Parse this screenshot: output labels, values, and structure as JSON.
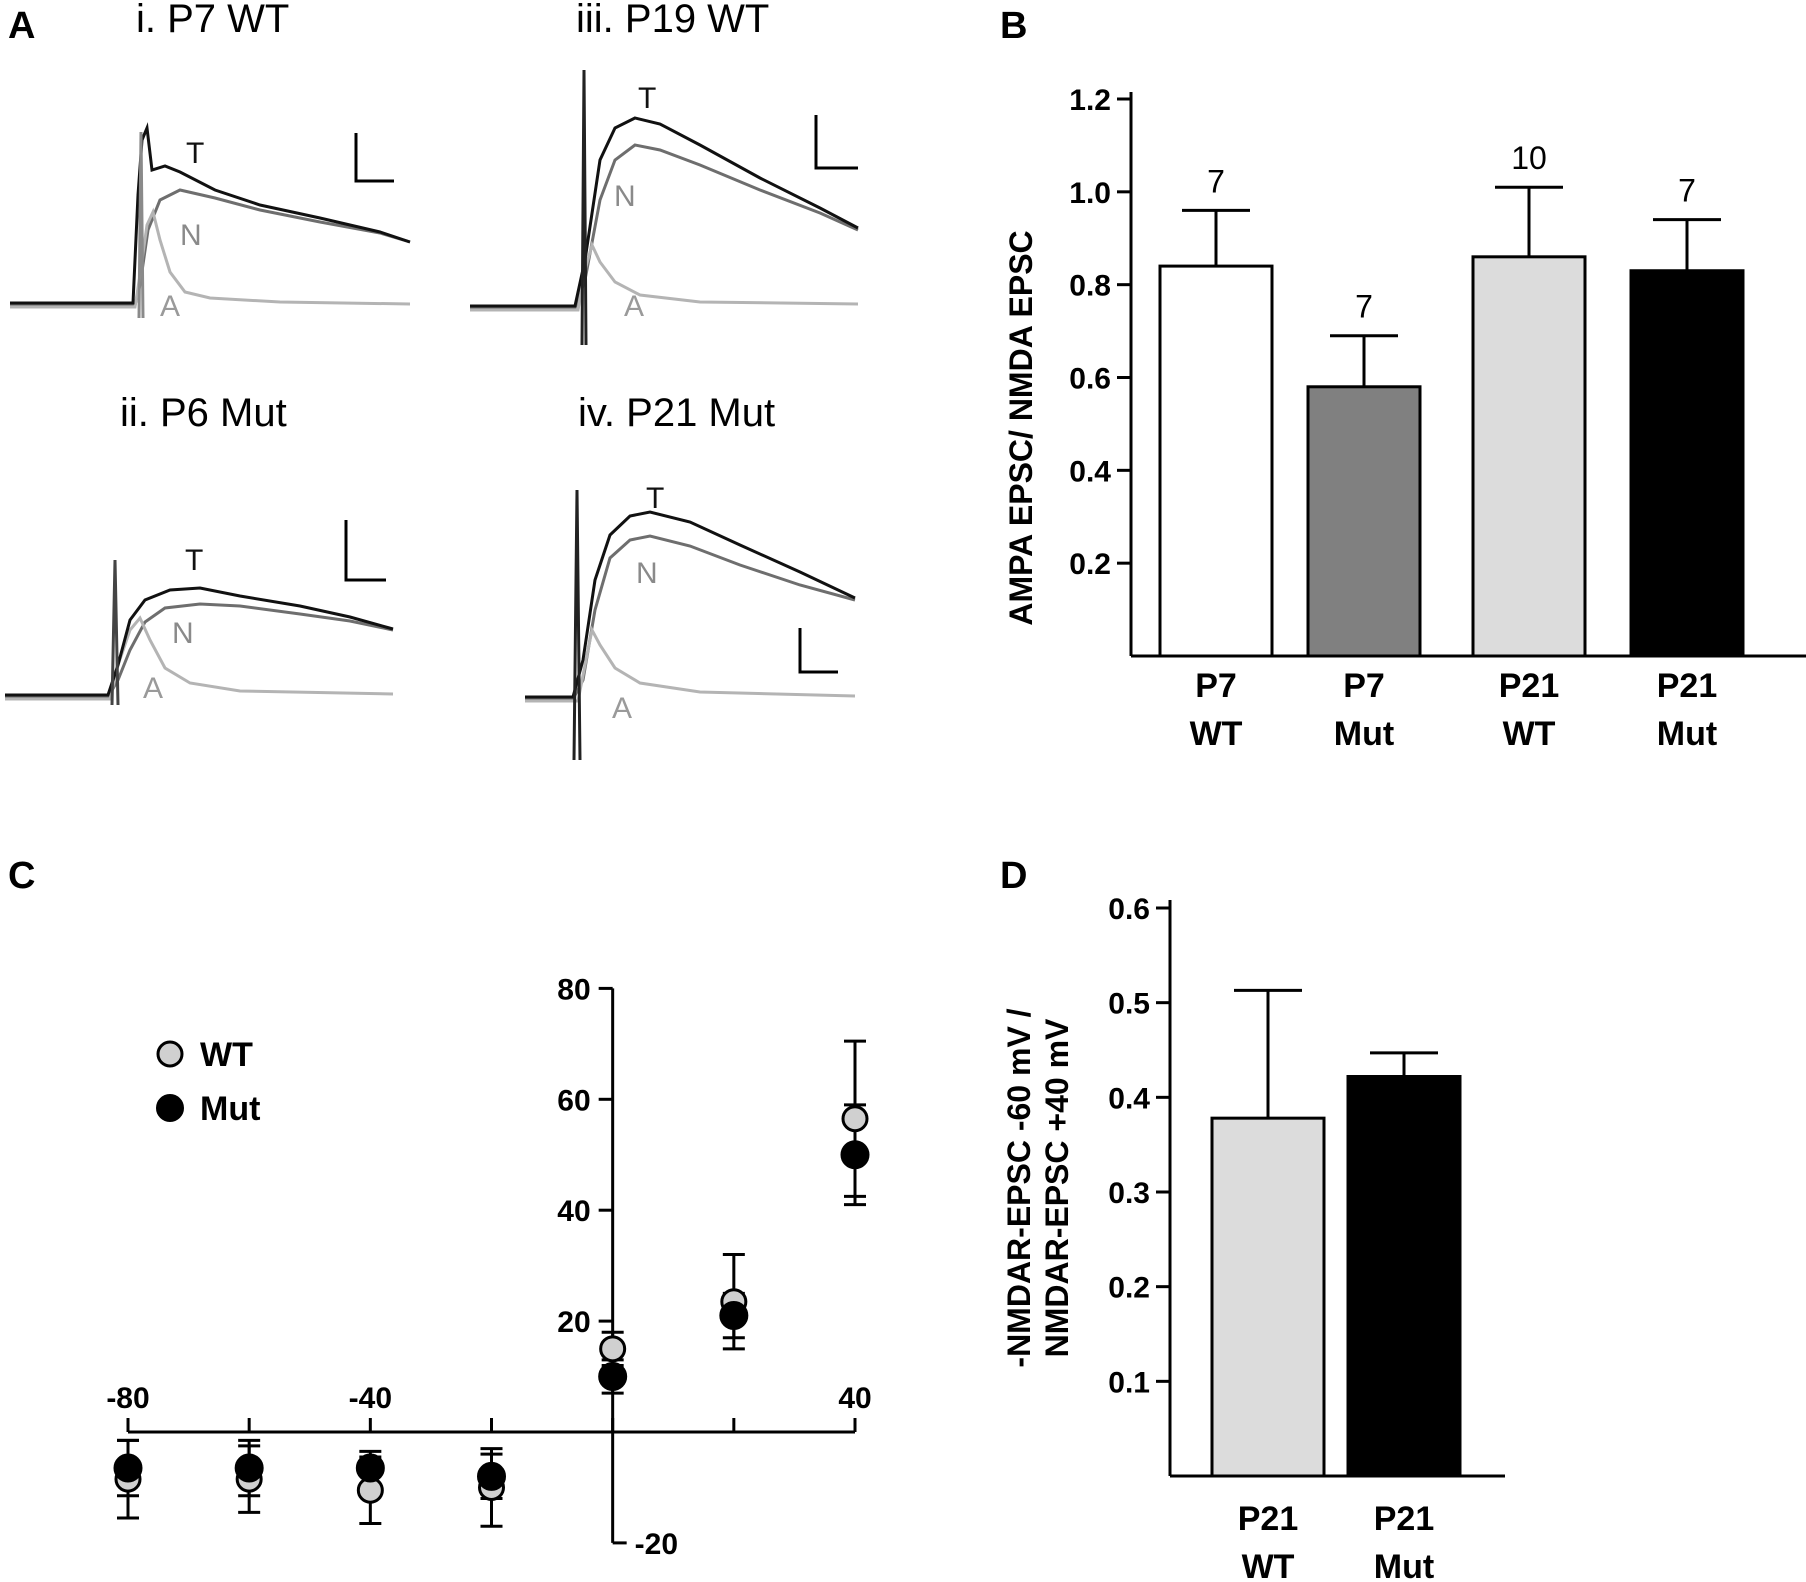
{
  "panels": {
    "A": "A",
    "B": "B",
    "C": "C",
    "D": "D"
  },
  "colors": {
    "total": "#111111",
    "nmda": "#6e6e6e",
    "ampa": "#b4b4b4",
    "bars_B": [
      "#ffffff",
      "#808080",
      "#dcdcdc",
      "#000000"
    ],
    "bars_D": [
      "#dcdcdc",
      "#000000"
    ],
    "wt_marker": "#d0d0d0",
    "mut_marker": "#000000"
  },
  "traces": [
    {
      "title": "i. P7 WT",
      "labels": {
        "total": "T",
        "nmda": "N",
        "ampa": "A"
      }
    },
    {
      "title": "iii. P19 WT",
      "labels": {
        "total": "T",
        "nmda": "N",
        "ampa": "A"
      }
    },
    {
      "title": "ii. P6 Mut",
      "labels": {
        "total": "T",
        "nmda": "N",
        "ampa": "A"
      }
    },
    {
      "title": "iv. P21 Mut",
      "labels": {
        "total": "T",
        "nmda": "N",
        "ampa": "A"
      }
    }
  ],
  "chart_data": [
    {
      "panel": "B",
      "type": "bar",
      "categories": [
        [
          "P7",
          "WT"
        ],
        [
          "P7",
          "Mut"
        ],
        [
          "P21",
          "WT"
        ],
        [
          "P21",
          "Mut"
        ]
      ],
      "values": [
        0.84,
        0.58,
        0.86,
        0.83
      ],
      "errors": [
        0.12,
        0.11,
        0.15,
        0.11
      ],
      "n": [
        "7",
        "7",
        "10",
        "7"
      ],
      "ylabel": "AMPA EPSC/ NMDA EPSC",
      "ylim": [
        0,
        1.2
      ],
      "yticks": [
        "0.2",
        "0.4",
        "0.6",
        "0.8",
        "1.0",
        "1.2"
      ]
    },
    {
      "panel": "C",
      "type": "scatter",
      "x": [
        -80,
        -60,
        -40,
        -20,
        0,
        20,
        40
      ],
      "series": [
        {
          "name": "WT",
          "values": [
            -8.5,
            -8.5,
            -10.5,
            -10,
            15,
            23.5,
            56.5
          ],
          "errors": [
            7,
            6,
            6,
            7,
            3,
            8.5,
            14
          ]
        },
        {
          "name": "Mut",
          "values": [
            -6.5,
            -6.5,
            -6.5,
            -8,
            10,
            21,
            50
          ],
          "errors": [
            5,
            5,
            3,
            4,
            3,
            4,
            9
          ]
        }
      ],
      "xticks": [
        "-80",
        "-40",
        "40"
      ],
      "yticks": [
        "80",
        "60",
        "40",
        "20",
        "-20"
      ],
      "xlim": [
        -80,
        40
      ],
      "ylim": [
        -20,
        80
      ]
    },
    {
      "panel": "D",
      "type": "bar",
      "categories": [
        [
          "P21",
          "WT"
        ],
        [
          "P21",
          "Mut"
        ]
      ],
      "values": [
        0.378,
        0.422
      ],
      "errors": [
        0.135,
        0.025
      ],
      "ylabel_line1": "-NMDAR-EPSC -60 mV /",
      "ylabel_line2": "NMDAR-EPSC +40 mV",
      "ylim": [
        0,
        0.6
      ],
      "yticks": [
        "0.1",
        "0.2",
        "0.3",
        "0.4",
        "0.5",
        "0.6"
      ]
    }
  ]
}
